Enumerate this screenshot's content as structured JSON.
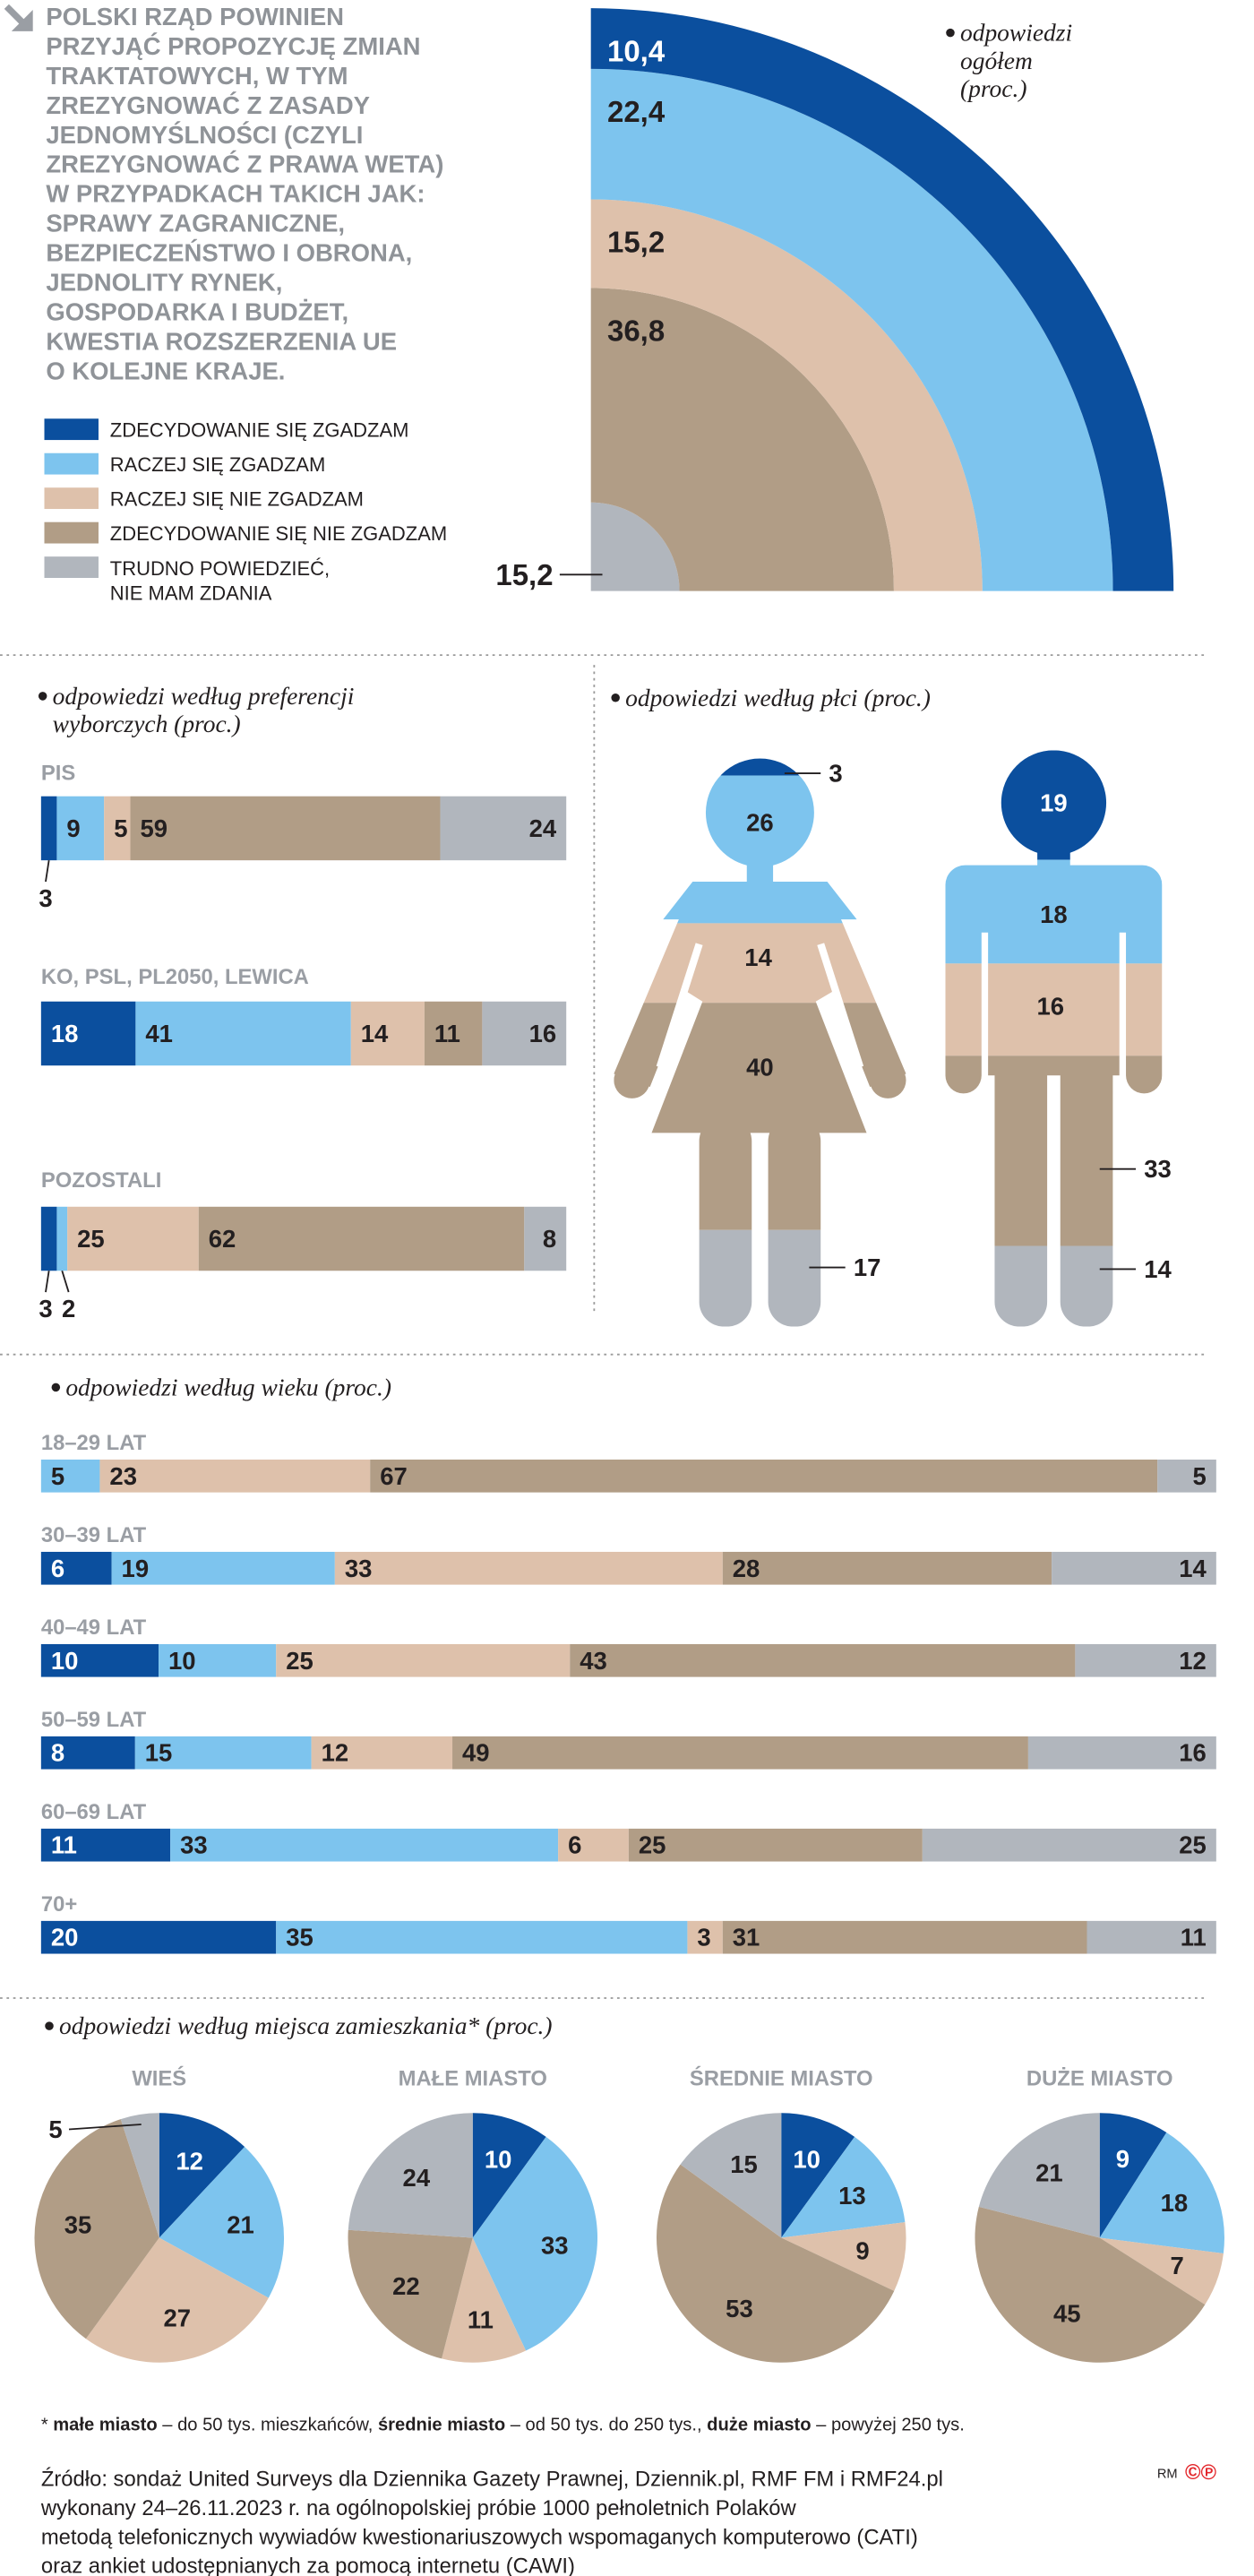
{
  "title": [
    "POLSKI RZĄD POWINIEN",
    "PRZYJĄĆ PROPOZYCJĘ ZMIAN",
    "TRAKTATOWYCH, W TYM",
    "ZREZYGNOWAĆ Z ZASADY",
    "JEDNOMYŚLNOŚCI (CZYLI",
    "ZREZYGNOWAĆ Z PRAWA WETA)",
    "W PRZYPADKACH TAKICH JAK:",
    "SPRAWY ZAGRANICZNE,",
    "BEZPIECZEŃSTWO I OBRONA,",
    "JEDNOLITY RYNEK,",
    "GOSPODARKA I BUDŻET,",
    "KWESTIA ROZSZERZENIA UE",
    "O KOLEJNE KRAJE."
  ],
  "chart_data": [
    {
      "type": "radial",
      "title": [
        "odpowiedzi",
        "ogółem",
        "(proc.)"
      ],
      "series": [
        {
          "name": "ZDECYDOWANIE SIĘ ZGADZAM",
          "color": "#0b4f9e",
          "values": [
            10.4
          ],
          "value_labels": [
            "10,4"
          ]
        },
        {
          "name": "RACZEJ SIĘ ZGADZAM",
          "color": "#7dc4ee",
          "values": [
            22.4
          ],
          "value_labels": [
            "22,4"
          ]
        },
        {
          "name": "RACZEJ SIĘ NIE ZGADZAM",
          "color": "#dec1ab",
          "values": [
            15.2
          ],
          "value_labels": [
            "15,2"
          ]
        },
        {
          "name": "ZDECYDOWANIE SIĘ NIE ZGADZAM",
          "color": "#b19d86",
          "values": [
            36.8
          ],
          "value_labels": [
            "36,8"
          ]
        },
        {
          "name": "TRUDNO POWIEDZIEĆ, NIE MAM ZDANIA",
          "color": "#b1b6bd",
          "values": [
            15.2
          ],
          "value_labels": [
            "15,2"
          ]
        }
      ]
    },
    {
      "type": "bar",
      "title": [
        "odpowiedzi według preferencji",
        "wyborczych (proc.)"
      ],
      "categories": [
        "PIS",
        "KO, PSL, PL2050, LEWICA",
        "POZOSTALI"
      ],
      "series": [
        {
          "color": "#0b4f9e",
          "values": [
            3,
            18,
            3
          ]
        },
        {
          "color": "#7dc4ee",
          "values": [
            9,
            41,
            2
          ]
        },
        {
          "color": "#dec1ab",
          "values": [
            5,
            14,
            25
          ]
        },
        {
          "color": "#b19d86",
          "values": [
            59,
            11,
            62
          ]
        },
        {
          "color": "#b1b6bd",
          "values": [
            24,
            16,
            8
          ]
        }
      ]
    },
    {
      "type": "pictogram",
      "title": [
        "odpowiedzi według płci (proc.)"
      ],
      "categories": [
        null,
        null
      ],
      "series": [
        {
          "color": "#0b4f9e",
          "values": [
            3,
            19
          ]
        },
        {
          "color": "#7dc4ee",
          "values": [
            26,
            18
          ]
        },
        {
          "color": "#dec1ab",
          "values": [
            14,
            16
          ]
        },
        {
          "color": "#b19d86",
          "values": [
            40,
            33
          ]
        },
        {
          "color": "#b1b6bd",
          "values": [
            17,
            14
          ]
        }
      ]
    },
    {
      "type": "bar",
      "title": [
        "odpowiedzi według wieku (proc.)"
      ],
      "categories": [
        "18–29 LAT",
        "30–39 LAT",
        "40–49 LAT",
        "50–59 LAT",
        "60–69 LAT",
        "70+"
      ],
      "series": [
        {
          "color": "#0b4f9e",
          "values": [
            0,
            6,
            10,
            8,
            11,
            20
          ]
        },
        {
          "color": "#7dc4ee",
          "values": [
            5,
            19,
            10,
            15,
            33,
            35
          ]
        },
        {
          "color": "#dec1ab",
          "values": [
            23,
            33,
            25,
            12,
            6,
            3
          ]
        },
        {
          "color": "#b19d86",
          "values": [
            67,
            28,
            43,
            49,
            25,
            31
          ]
        },
        {
          "color": "#b1b6bd",
          "values": [
            5,
            14,
            12,
            16,
            25,
            11
          ]
        }
      ]
    },
    {
      "type": "pie",
      "title": [
        "odpowiedzi według miejsca zamieszkania* (proc.)"
      ],
      "categories": [
        "WIEŚ",
        "MAŁE MIASTO",
        "ŚREDNIE MIASTO",
        "DUŻE MIASTO"
      ],
      "series": [
        {
          "color": "#0b4f9e",
          "values": [
            12,
            10,
            10,
            9
          ]
        },
        {
          "color": "#7dc4ee",
          "values": [
            21,
            33,
            13,
            18
          ]
        },
        {
          "color": "#dec1ab",
          "values": [
            27,
            11,
            9,
            7
          ]
        },
        {
          "color": "#b19d86",
          "values": [
            35,
            22,
            53,
            45
          ]
        },
        {
          "color": "#b1b6bd",
          "values": [
            5,
            24,
            15,
            21
          ]
        }
      ]
    }
  ],
  "footnote": [
    "* ",
    "małe miasto",
    " – do 50 tys. mieszkańców, ",
    "średnie miasto",
    " – od 50 tys. do 250 tys., ",
    "duże miasto",
    " – powyżej 250 tys."
  ],
  "source": [
    "Źródło: sondaż United Surveys dla Dziennika Gazety Prawnej, Dziennik.pl, RMF FM i RMF24.pl",
    "wykonany 24–26.11.2023 r. na ogólnopolskiej próbie 1000 pełnoletnich Polaków",
    "metodą telefonicznych wywiadów kwestionariuszowych wspomaganych komputerowo (CATI)",
    "oraz ankiet udostępnianych za pomocą internetu (CAWI)"
  ],
  "credit": "RM",
  "logo": "©℗"
}
